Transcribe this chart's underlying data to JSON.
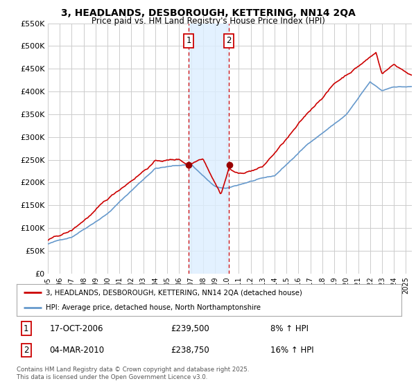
{
  "title": "3, HEADLANDS, DESBOROUGH, KETTERING, NN14 2QA",
  "subtitle": "Price paid vs. HM Land Registry's House Price Index (HPI)",
  "ylim": [
    0,
    550000
  ],
  "yticks": [
    0,
    50000,
    100000,
    150000,
    200000,
    250000,
    300000,
    350000,
    400000,
    450000,
    500000,
    550000
  ],
  "ytick_labels": [
    "£0",
    "£50K",
    "£100K",
    "£150K",
    "£200K",
    "£250K",
    "£300K",
    "£350K",
    "£400K",
    "£450K",
    "£500K",
    "£550K"
  ],
  "xlim_start": 1995.0,
  "xlim_end": 2025.5,
  "vline1_x": 2006.79,
  "vline2_x": 2010.17,
  "vline1_label": "1",
  "vline2_label": "2",
  "sale1_price_val": 239500,
  "sale2_price_val": 238750,
  "sale1_date": "17-OCT-2006",
  "sale1_price": "£239,500",
  "sale1_hpi": "8% ↑ HPI",
  "sale2_date": "04-MAR-2010",
  "sale2_price": "£238,750",
  "sale2_hpi": "16% ↑ HPI",
  "legend_line1": "3, HEADLANDS, DESBOROUGH, KETTERING, NN14 2QA (detached house)",
  "legend_line2": "HPI: Average price, detached house, North Northamptonshire",
  "footer": "Contains HM Land Registry data © Crown copyright and database right 2025.\nThis data is licensed under the Open Government Licence v3.0.",
  "red_line_color": "#cc0000",
  "blue_line_color": "#6699cc",
  "shade_color": "#ddeeff",
  "vline_color": "#cc0000",
  "dot_color": "#990000",
  "background_color": "#ffffff",
  "grid_color": "#cccccc"
}
